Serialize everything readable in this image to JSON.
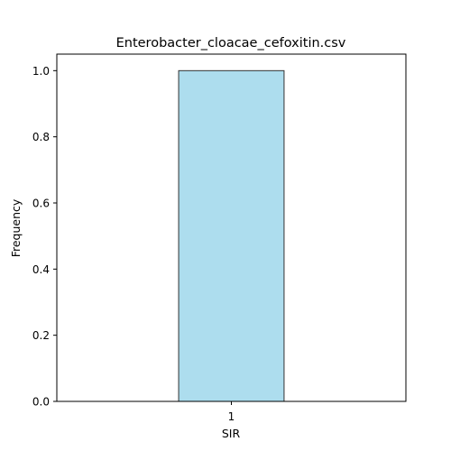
{
  "chart_data": {
    "type": "bar",
    "title": "Enterobacter_cloacae_cefoxitin.csv",
    "xlabel": "SIR",
    "ylabel": "Frequency",
    "categories": [
      "1"
    ],
    "values": [
      1.0
    ],
    "ylim": [
      0,
      1.05
    ],
    "yticks": [
      0.0,
      0.2,
      0.4,
      0.6,
      0.8,
      1.0
    ],
    "ytick_labels": [
      "0.0",
      "0.2",
      "0.4",
      "0.6",
      "0.8",
      "1.0"
    ],
    "bar_color": "#ADDDEE",
    "bar_edge_color": "#333333",
    "grid": false,
    "legend": false
  }
}
